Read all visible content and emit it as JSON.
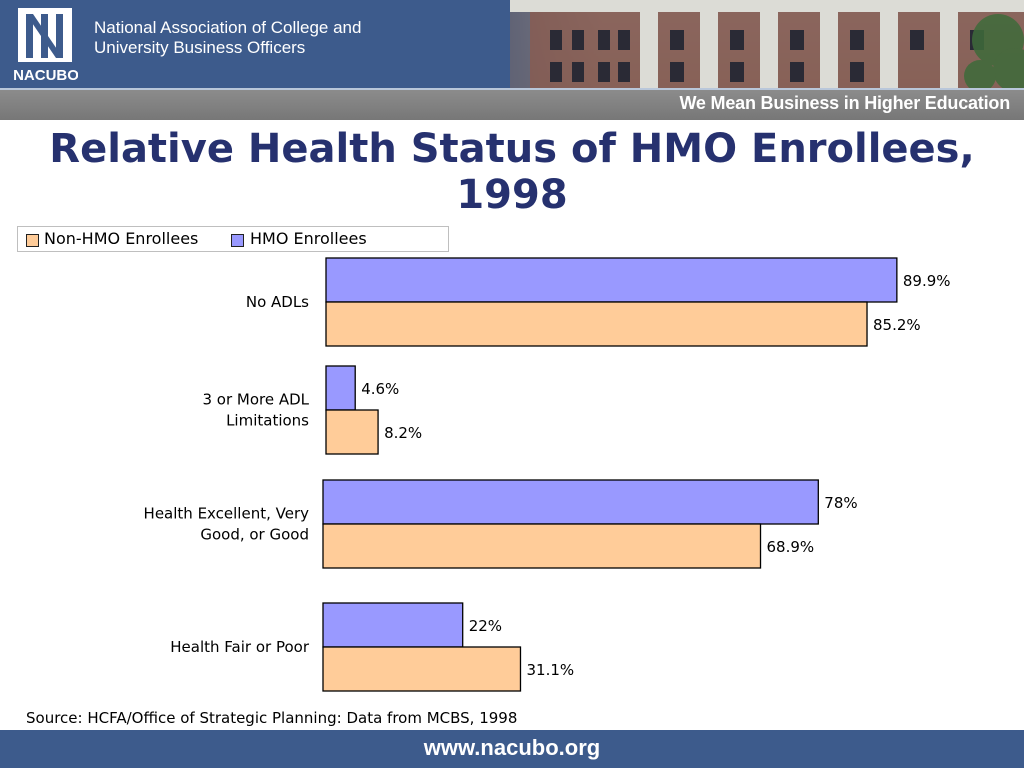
{
  "header": {
    "logo_text": "NACUBO",
    "org_line1": "National Association of College and",
    "org_line2": "University Business Officers",
    "tagline": "We Mean Business in Higher Education"
  },
  "title_line1": "Relative Health Status of HMO Enrollees,",
  "title_line2": "1998",
  "legend": [
    {
      "label": "Non-HMO Enrollees",
      "color": "#ffcc99"
    },
    {
      "label": "HMO Enrollees",
      "color": "#9999ff"
    }
  ],
  "chart_data": {
    "type": "bar",
    "orientation": "horizontal",
    "categories": [
      "No ADLs",
      "3 or More ADL Limitations",
      "Health Excellent, Very Good, or Good",
      "Health Fair or Poor"
    ],
    "category_lines": [
      [
        "No ADLs"
      ],
      [
        "3 or More ADL",
        "Limitations"
      ],
      [
        "Health Excellent, Very",
        "Good, or Good"
      ],
      [
        "Health Fair or Poor"
      ]
    ],
    "series": [
      {
        "name": "HMO Enrollees",
        "color": "#9999ff",
        "values": [
          89.9,
          4.6,
          78,
          22
        ],
        "labels": [
          "89.9%",
          "4.6%",
          "78%",
          "22%"
        ]
      },
      {
        "name": "Non-HMO Enrollees",
        "color": "#ffcc99",
        "values": [
          85.2,
          8.2,
          68.9,
          31.1
        ],
        "labels": [
          "85.2%",
          "8.2%",
          "68.9%",
          "31.1%"
        ]
      }
    ],
    "xlim": [
      0,
      100
    ],
    "grid": false,
    "legend_position": "top-left"
  },
  "source": "Source: HCFA/Office of Strategic Planning: Data from MCBS, 1998",
  "footer": "www.nacubo.org"
}
